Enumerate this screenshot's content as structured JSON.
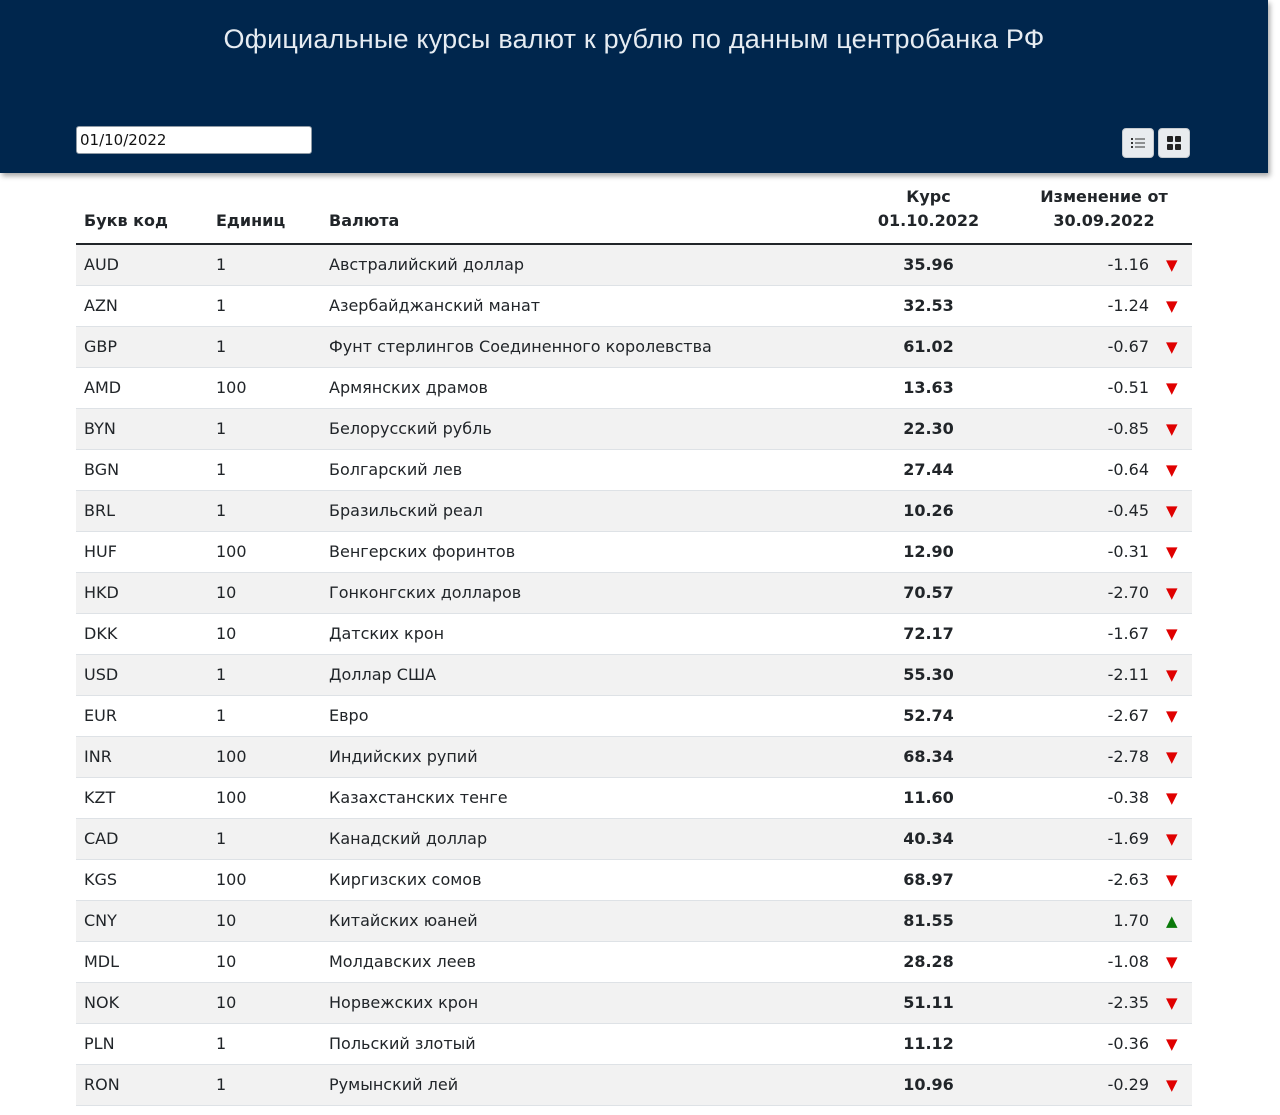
{
  "header": {
    "title": "Официальные курсы валют к рублю по данным центробанка РФ",
    "date_value": "01/10/2022",
    "view_list_icon": "list-view-icon",
    "view_grid_icon": "grid-view-icon"
  },
  "table": {
    "columns": {
      "code": "Букв код",
      "units": "Единиц",
      "name": "Валюта",
      "rate_line1": "Курс",
      "rate_line2": "01.10.2022",
      "change_line1": "Изменение от",
      "change_line2": "30.09.2022"
    },
    "rows": [
      {
        "code": "AUD",
        "units": "1",
        "name": "Австралийский доллар",
        "rate": "35.96",
        "change": "-1.16",
        "dir": "down"
      },
      {
        "code": "AZN",
        "units": "1",
        "name": "Азербайджанский манат",
        "rate": "32.53",
        "change": "-1.24",
        "dir": "down"
      },
      {
        "code": "GBP",
        "units": "1",
        "name": "Фунт стерлингов Соединенного королевства",
        "rate": "61.02",
        "change": "-0.67",
        "dir": "down"
      },
      {
        "code": "AMD",
        "units": "100",
        "name": "Армянских драмов",
        "rate": "13.63",
        "change": "-0.51",
        "dir": "down"
      },
      {
        "code": "BYN",
        "units": "1",
        "name": "Белорусский рубль",
        "rate": "22.30",
        "change": "-0.85",
        "dir": "down"
      },
      {
        "code": "BGN",
        "units": "1",
        "name": "Болгарский лев",
        "rate": "27.44",
        "change": "-0.64",
        "dir": "down"
      },
      {
        "code": "BRL",
        "units": "1",
        "name": "Бразильский реал",
        "rate": "10.26",
        "change": "-0.45",
        "dir": "down"
      },
      {
        "code": "HUF",
        "units": "100",
        "name": "Венгерских форинтов",
        "rate": "12.90",
        "change": "-0.31",
        "dir": "down"
      },
      {
        "code": "HKD",
        "units": "10",
        "name": "Гонконгских долларов",
        "rate": "70.57",
        "change": "-2.70",
        "dir": "down"
      },
      {
        "code": "DKK",
        "units": "10",
        "name": "Датских крон",
        "rate": "72.17",
        "change": "-1.67",
        "dir": "down"
      },
      {
        "code": "USD",
        "units": "1",
        "name": "Доллар США",
        "rate": "55.30",
        "change": "-2.11",
        "dir": "down"
      },
      {
        "code": "EUR",
        "units": "1",
        "name": "Евро",
        "rate": "52.74",
        "change": "-2.67",
        "dir": "down"
      },
      {
        "code": "INR",
        "units": "100",
        "name": "Индийских рупий",
        "rate": "68.34",
        "change": "-2.78",
        "dir": "down"
      },
      {
        "code": "KZT",
        "units": "100",
        "name": "Казахстанских тенге",
        "rate": "11.60",
        "change": "-0.38",
        "dir": "down"
      },
      {
        "code": "CAD",
        "units": "1",
        "name": "Канадский доллар",
        "rate": "40.34",
        "change": "-1.69",
        "dir": "down"
      },
      {
        "code": "KGS",
        "units": "100",
        "name": "Киргизских сомов",
        "rate": "68.97",
        "change": "-2.63",
        "dir": "down"
      },
      {
        "code": "CNY",
        "units": "10",
        "name": "Китайских юаней",
        "rate": "81.55",
        "change": "1.70",
        "dir": "up"
      },
      {
        "code": "MDL",
        "units": "10",
        "name": "Молдавских леев",
        "rate": "28.28",
        "change": "-1.08",
        "dir": "down"
      },
      {
        "code": "NOK",
        "units": "10",
        "name": "Норвежских крон",
        "rate": "51.11",
        "change": "-2.35",
        "dir": "down"
      },
      {
        "code": "PLN",
        "units": "1",
        "name": "Польский злотый",
        "rate": "11.12",
        "change": "-0.36",
        "dir": "down"
      },
      {
        "code": "RON",
        "units": "1",
        "name": "Румынский лей",
        "rate": "10.96",
        "change": "-0.29",
        "dir": "down"
      }
    ]
  },
  "colors": {
    "header_bg": "#00264d",
    "arrow_down": "#e00000",
    "arrow_up": "#0a7a0a"
  }
}
